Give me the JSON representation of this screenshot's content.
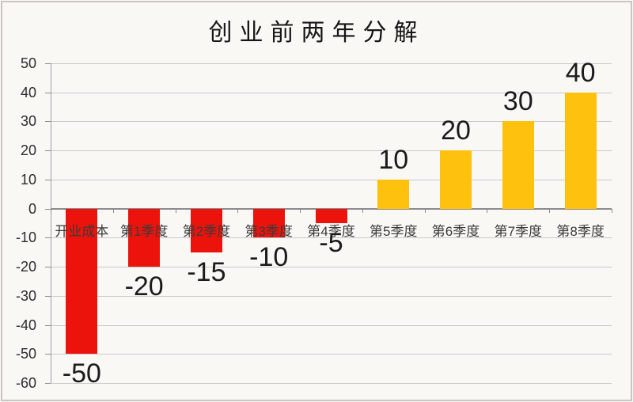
{
  "page": {
    "background": "#faf8f5",
    "frame_border_color": "#c9c5bf"
  },
  "chart_data": {
    "type": "bar",
    "title": "创业前两年分解",
    "categories": [
      "开业成本",
      "第1季度",
      "第2季度",
      "第3季度",
      "第4季度",
      "第5季度",
      "第6季度",
      "第7季度",
      "第8季度"
    ],
    "values": [
      -50,
      -20,
      -15,
      -10,
      -5,
      10,
      20,
      30,
      40
    ],
    "data_labels": [
      "-50",
      "-20",
      "-15",
      "-10",
      "-5",
      "10",
      "20",
      "30",
      "40"
    ],
    "yticks": [
      50,
      40,
      30,
      20,
      10,
      0,
      -10,
      -20,
      -30,
      -40,
      -50,
      -60
    ],
    "ylim": [
      -60,
      50
    ],
    "xlabel": "",
    "ylabel": "",
    "grid": true,
    "legend": false,
    "colors": {
      "negative_bar": "#ec130c",
      "positive_bar": "#fec10d",
      "gridline": "#c9c9c9",
      "axis": "#8c8c8c",
      "title_text": "#161616",
      "label_text": "#1b1b1b"
    }
  }
}
